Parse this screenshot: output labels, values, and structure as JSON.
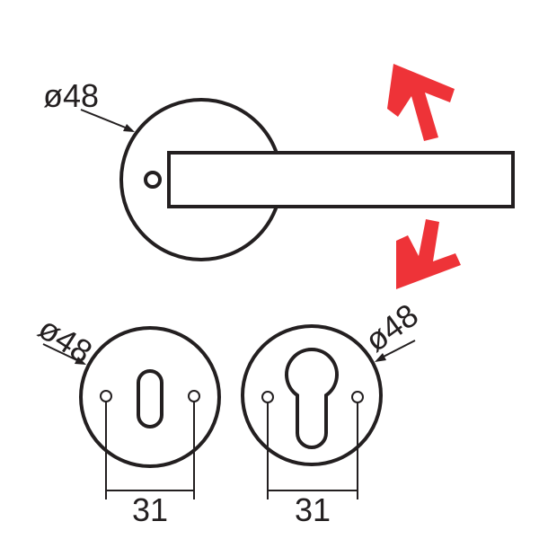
{
  "colors": {
    "line": "#231f20",
    "arrow": "#ee3338",
    "background": "#ffffff"
  },
  "labels": {
    "handle_rose_diameter": "ø48",
    "key_escutcheon_diameter": "ø48",
    "cylinder_escutcheon_diameter": "ø48",
    "key_escutcheon_hole_spacing": "31",
    "cylinder_escutcheon_hole_spacing": "31"
  },
  "icons": {
    "up_arrow": "arrow-up-right-icon",
    "down_arrow": "arrow-down-left-icon"
  }
}
